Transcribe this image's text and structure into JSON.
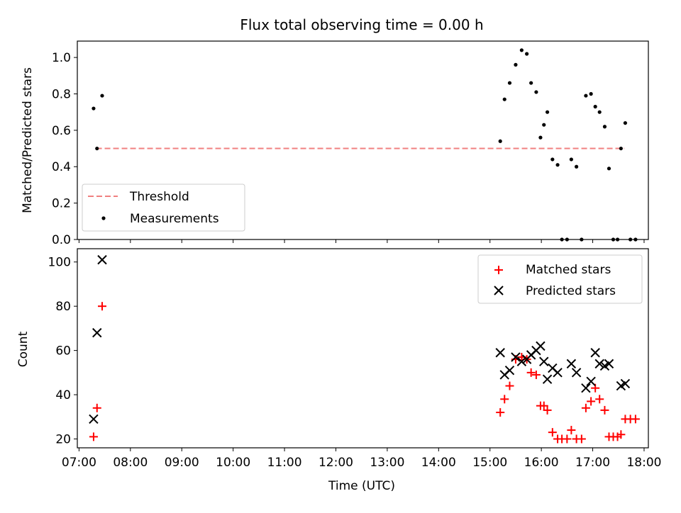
{
  "chart_data": [
    {
      "type": "scatter",
      "title": "Flux total observing time = 0.00 h",
      "ylabel": "Matched/Predicted stars",
      "xlabel": "",
      "xlim": [
        "06:58",
        "18:05"
      ],
      "ylim": [
        0,
        1.09
      ],
      "yticks": [
        "0.0",
        "0.2",
        "0.4",
        "0.6",
        "0.8",
        "1.0"
      ],
      "threshold": {
        "name": "Threshold",
        "value": 0.5,
        "x": [
          "07:20",
          "17:37"
        ],
        "color": "#f08080"
      },
      "legend": {
        "location": "lower-left",
        "entries": [
          "Threshold",
          "Measurements"
        ]
      },
      "series": [
        {
          "name": "Measurements",
          "color": "#000000",
          "points": [
            [
              "07:17",
              0.72
            ],
            [
              "07:21",
              0.5
            ],
            [
              "07:27",
              0.79
            ],
            [
              "15:12",
              0.54
            ],
            [
              "15:17",
              0.77
            ],
            [
              "15:23",
              0.86
            ],
            [
              "15:30",
              0.96
            ],
            [
              "15:37",
              1.04
            ],
            [
              "15:43",
              1.02
            ],
            [
              "15:48",
              0.86
            ],
            [
              "15:54",
              0.81
            ],
            [
              "15:59",
              0.56
            ],
            [
              "16:03",
              0.63
            ],
            [
              "16:07",
              0.7
            ],
            [
              "16:13",
              0.44
            ],
            [
              "16:19",
              0.41
            ],
            [
              "16:24",
              0.0
            ],
            [
              "16:30",
              0.0
            ],
            [
              "16:35",
              0.44
            ],
            [
              "16:41",
              0.4
            ],
            [
              "16:47",
              0.0
            ],
            [
              "16:52",
              0.79
            ],
            [
              "16:58",
              0.8
            ],
            [
              "17:03",
              0.73
            ],
            [
              "17:08",
              0.7
            ],
            [
              "17:14",
              0.62
            ],
            [
              "17:19",
              0.39
            ],
            [
              "17:24",
              0.0
            ],
            [
              "17:29",
              0.0
            ],
            [
              "17:33",
              0.5
            ],
            [
              "17:38",
              0.64
            ],
            [
              "17:44",
              0.0
            ],
            [
              "17:50",
              0.0
            ]
          ]
        }
      ]
    },
    {
      "type": "scatter",
      "title": "",
      "ylabel": "Count",
      "xlabel": "Time (UTC)",
      "xlim": [
        "06:58",
        "18:05"
      ],
      "ylim": [
        16,
        106
      ],
      "yticks": [
        "20",
        "40",
        "60",
        "80",
        "100"
      ],
      "xticks": [
        "07:00",
        "08:00",
        "09:00",
        "10:00",
        "11:00",
        "12:00",
        "13:00",
        "14:00",
        "15:00",
        "16:00",
        "17:00",
        "18:00"
      ],
      "legend": {
        "location": "top-right",
        "entries": [
          "Matched stars",
          "Predicted stars"
        ]
      },
      "series": [
        {
          "name": "Matched stars",
          "marker": "plus",
          "color": "#ff0000",
          "points": [
            [
              "07:17",
              21
            ],
            [
              "07:21",
              34
            ],
            [
              "07:27",
              80
            ],
            [
              "15:12",
              32
            ],
            [
              "15:17",
              38
            ],
            [
              "15:23",
              44
            ],
            [
              "15:30",
              56
            ],
            [
              "15:37",
              57
            ],
            [
              "15:43",
              56
            ],
            [
              "15:48",
              50
            ],
            [
              "15:54",
              49
            ],
            [
              "15:59",
              35
            ],
            [
              "16:03",
              35
            ],
            [
              "16:07",
              33
            ],
            [
              "16:13",
              23
            ],
            [
              "16:19",
              20
            ],
            [
              "16:24",
              20
            ],
            [
              "16:30",
              20
            ],
            [
              "16:35",
              24
            ],
            [
              "16:41",
              20
            ],
            [
              "16:47",
              20
            ],
            [
              "16:52",
              34
            ],
            [
              "16:58",
              37
            ],
            [
              "17:03",
              43
            ],
            [
              "17:08",
              38
            ],
            [
              "17:14",
              33
            ],
            [
              "17:19",
              21
            ],
            [
              "17:24",
              21
            ],
            [
              "17:29",
              21
            ],
            [
              "17:33",
              22
            ],
            [
              "17:38",
              29
            ],
            [
              "17:44",
              29
            ],
            [
              "17:50",
              29
            ]
          ]
        },
        {
          "name": "Predicted stars",
          "marker": "x",
          "color": "#000000",
          "points": [
            [
              "07:17",
              29
            ],
            [
              "07:21",
              68
            ],
            [
              "07:27",
              101
            ],
            [
              "15:12",
              59
            ],
            [
              "15:17",
              49
            ],
            [
              "15:23",
              51
            ],
            [
              "15:30",
              57
            ],
            [
              "15:37",
              55
            ],
            [
              "15:43",
              56
            ],
            [
              "15:48",
              58
            ],
            [
              "15:54",
              60
            ],
            [
              "15:59",
              62
            ],
            [
              "16:03",
              55
            ],
            [
              "16:07",
              47
            ],
            [
              "16:13",
              52
            ],
            [
              "16:19",
              50
            ],
            [
              "16:35",
              54
            ],
            [
              "16:41",
              50
            ],
            [
              "16:52",
              43
            ],
            [
              "16:58",
              46
            ],
            [
              "17:03",
              59
            ],
            [
              "17:08",
              54
            ],
            [
              "17:14",
              53
            ],
            [
              "17:19",
              54
            ],
            [
              "17:33",
              44
            ],
            [
              "17:38",
              45
            ]
          ]
        }
      ]
    }
  ]
}
